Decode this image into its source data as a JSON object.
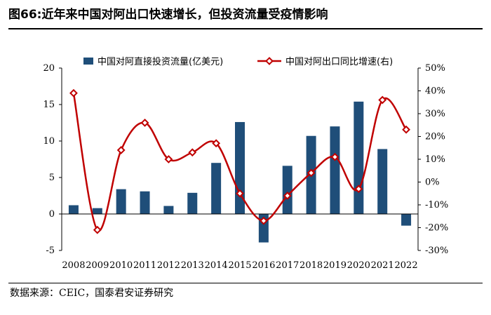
{
  "header": {
    "title": "图66:近年来中国对阿出口快速增长，但投资流量受疫情影响"
  },
  "footer": {
    "source": "数据来源：CEIC，国泰君安证券研究"
  },
  "chart_data": {
    "type": "bar+line",
    "categories": [
      "2008",
      "2009",
      "2010",
      "2011",
      "2012",
      "2013",
      "2014",
      "2015",
      "2016",
      "2017",
      "2018",
      "2019",
      "2020",
      "2021",
      "2022"
    ],
    "series": [
      {
        "name": "中国对阿直接投资流量(亿美元)",
        "type": "bar",
        "axis": "left",
        "color": "#1f4e79",
        "values": [
          1.2,
          0.8,
          3.4,
          3.1,
          1.1,
          2.9,
          7.0,
          12.6,
          -3.9,
          6.6,
          10.7,
          12.0,
          15.4,
          8.9,
          -1.6
        ]
      },
      {
        "name": "中国对阿出口同比增速(右)",
        "type": "line",
        "axis": "right",
        "color": "#c00000",
        "values": [
          39,
          -21,
          14,
          26,
          10,
          13,
          17,
          -5,
          -17,
          -6,
          4,
          11,
          -3,
          36,
          23
        ]
      }
    ],
    "left_axis": {
      "min": -5,
      "max": 20,
      "step": 5,
      "ticks": [
        "-5",
        "0",
        "5",
        "10",
        "15",
        "20"
      ]
    },
    "right_axis": {
      "min": -30,
      "max": 50,
      "step": 10,
      "ticks": [
        "-30%",
        "-20%",
        "-10%",
        "0%",
        "10%",
        "20%",
        "30%",
        "40%",
        "50%"
      ]
    },
    "legend_position": "top",
    "grid": false
  }
}
